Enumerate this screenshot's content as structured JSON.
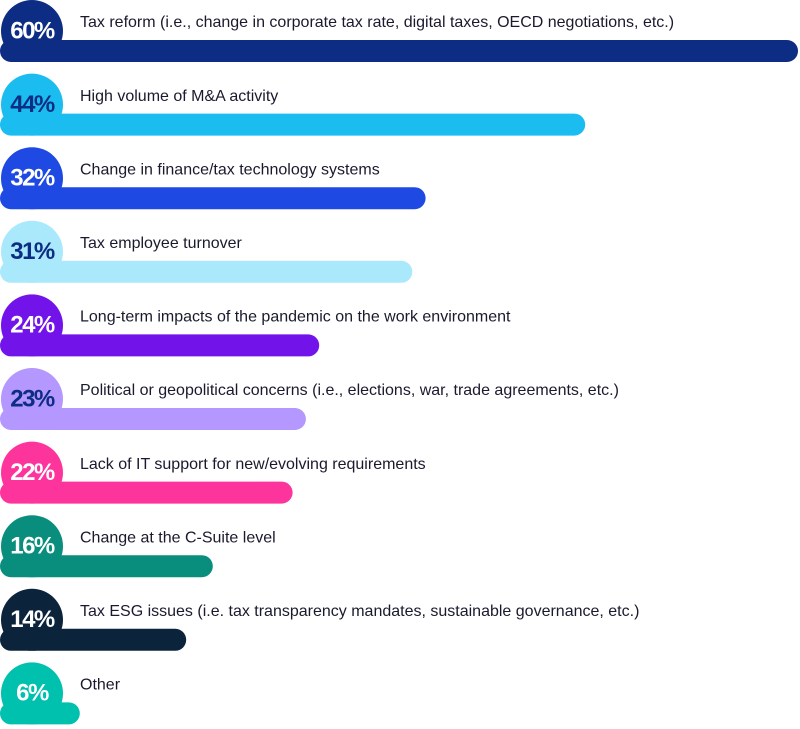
{
  "chart_data": {
    "type": "bar",
    "categories": [
      "Tax reform (i.e., change in corporate tax rate, digital taxes, OECD negotiations, etc.)",
      "High volume of M&A activity",
      "Change in finance/tax technology systems",
      "Tax employee turnover",
      "Long-term impacts of the pandemic on the work environment",
      "Political or geopolitical concerns (i.e., elections, war, trade agreements, etc.)",
      "Lack of IT support for new/evolving requirements",
      "Change at the C-Suite level",
      "Tax ESG issues (i.e. tax transparency mandates, sustainable governance, etc.)",
      "Other"
    ],
    "values": [
      60,
      44,
      32,
      31,
      24,
      23,
      22,
      16,
      14,
      6
    ],
    "value_labels": [
      "60%",
      "44%",
      "32%",
      "31%",
      "24%",
      "23%",
      "22%",
      "16%",
      "14%",
      "6%"
    ],
    "colors": [
      "#0c2d83",
      "#1bbcf0",
      "#1e49e2",
      "#aae9fb",
      "#7213ea",
      "#b497ff",
      "#fd349c",
      "#098e7e",
      "#0c233c",
      "#00c0ae"
    ]
  }
}
